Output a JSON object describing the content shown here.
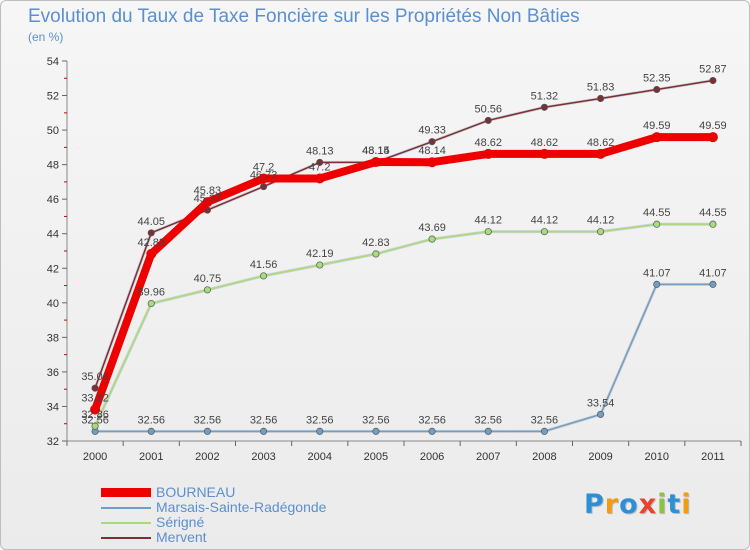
{
  "title": "Evolution du Taux de Taxe Foncière sur les Propriétés Non Bâties",
  "subtitle": "(en %)",
  "logo": {
    "text": "Proxiti",
    "letters": [
      "P",
      "r",
      "o",
      "x",
      "i",
      "t",
      "i"
    ],
    "colors": [
      "#2d8fd6",
      "#f39c12",
      "#2d8fd6",
      "#e8432e",
      "#8bc34a",
      "#2d8fd6",
      "#f39c12"
    ]
  },
  "chart_data": {
    "type": "line",
    "title": "Evolution du Taux de Taxe Foncière sur les Propriétés Non Bâties",
    "ylabel": "(en %)",
    "xlabel": "",
    "ylim": [
      32,
      54
    ],
    "yticks": [
      32,
      34,
      36,
      38,
      40,
      42,
      44,
      46,
      48,
      50,
      52,
      54
    ],
    "grid": false,
    "legend_position": "bottom-left",
    "categories": [
      "2000",
      "2001",
      "2002",
      "2003",
      "2004",
      "2005",
      "2006",
      "2007",
      "2008",
      "2009",
      "2010",
      "2011"
    ],
    "series": [
      {
        "name": "BOURNEAU",
        "color": "#ee0000",
        "thick": true,
        "values": [
          33.82,
          42.83,
          45.83,
          47.2,
          47.2,
          48.15,
          48.14,
          48.62,
          48.62,
          48.62,
          49.59,
          49.59
        ],
        "labels": [
          "33.82",
          "42.83",
          "45.83",
          "47.2",
          "47.2",
          "48.15",
          "48.14",
          "48.62",
          "48.62",
          "48.62",
          "49.59",
          "49.59"
        ]
      },
      {
        "name": "Marsais-Sainte-Radégonde",
        "color": "#6f9ec6",
        "thick": false,
        "values": [
          32.56,
          32.56,
          32.56,
          32.56,
          32.56,
          32.56,
          32.56,
          32.56,
          32.56,
          33.54,
          41.07,
          41.07
        ],
        "labels": [
          "32.56",
          "32.56",
          "32.56",
          "32.56",
          "32.56",
          "32.56",
          "32.56",
          "32.56",
          "32.56",
          "33.54",
          "41.07",
          "41.07"
        ]
      },
      {
        "name": "Sérigné",
        "color": "#a6dc7e",
        "thick": false,
        "values": [
          32.86,
          39.96,
          40.75,
          41.56,
          42.19,
          42.83,
          43.69,
          44.12,
          44.12,
          44.12,
          44.55,
          44.55
        ],
        "labels": [
          "32.86",
          "39.96",
          "40.75",
          "41.56",
          "42.19",
          "42.83",
          "43.69",
          "44.12",
          "44.12",
          "44.12",
          "44.55",
          "44.55"
        ]
      },
      {
        "name": "Mervent",
        "color": "#7a3038",
        "thick": false,
        "values": [
          35.06,
          44.05,
          45.37,
          46.73,
          48.13,
          48.14,
          49.33,
          50.56,
          51.32,
          51.83,
          52.35,
          52.87
        ],
        "labels": [
          "35.06",
          "44.05",
          "45.37",
          "46.73",
          "48.13",
          "48.14",
          "49.33",
          "50.56",
          "51.32",
          "51.83",
          "52.35",
          "52.87"
        ]
      }
    ]
  }
}
